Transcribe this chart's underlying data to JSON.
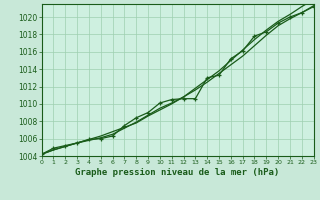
{
  "xlabel": "Graphe pression niveau de la mer (hPa)",
  "ylim": [
    1004,
    1021
  ],
  "xlim": [
    0,
    23
  ],
  "yticks": [
    1004,
    1006,
    1008,
    1010,
    1012,
    1014,
    1016,
    1018,
    1020
  ],
  "xticks": [
    0,
    1,
    2,
    3,
    4,
    5,
    6,
    7,
    8,
    9,
    10,
    11,
    12,
    13,
    14,
    15,
    16,
    17,
    18,
    19,
    20,
    21,
    22,
    23
  ],
  "background_color": "#c8e8d8",
  "plot_bg_color": "#cef0e0",
  "grid_color": "#9ecfb0",
  "line_color": "#1a5c1a",
  "hours": [
    0,
    1,
    2,
    3,
    4,
    5,
    6,
    7,
    8,
    9,
    10,
    11,
    12,
    13,
    14,
    15,
    16,
    17,
    18,
    19,
    20,
    21,
    22,
    23
  ],
  "line1": [
    1004.2,
    1004.7,
    1005.1,
    1005.5,
    1005.8,
    1006.1,
    1006.5,
    1007.2,
    1007.9,
    1008.7,
    1009.5,
    1010.1,
    1010.8,
    1011.6,
    1012.5,
    1013.5,
    1014.5,
    1015.5,
    1016.7,
    1017.9,
    1019.0,
    1019.8,
    1020.5,
    1021.3
  ],
  "line2": [
    1004.2,
    1004.7,
    1005.1,
    1005.5,
    1005.9,
    1006.3,
    1006.8,
    1007.3,
    1007.8,
    1008.6,
    1009.3,
    1010.0,
    1010.8,
    1011.8,
    1012.8,
    1013.8,
    1015.0,
    1016.2,
    1017.4,
    1018.5,
    1019.5,
    1020.3,
    1021.2,
    1022.0
  ],
  "line_marked": [
    1004.2,
    1004.9,
    1005.2,
    1005.5,
    1005.9,
    1006.0,
    1006.3,
    1007.5,
    1008.4,
    1009.0,
    1010.1,
    1010.5,
    1010.6,
    1010.6,
    1013.0,
    1013.3,
    1015.2,
    1016.1,
    1017.8,
    1018.3,
    1019.3,
    1020.0,
    1020.5,
    1021.2
  ],
  "tick_fontsize": 5.5,
  "label_fontsize": 6.5
}
